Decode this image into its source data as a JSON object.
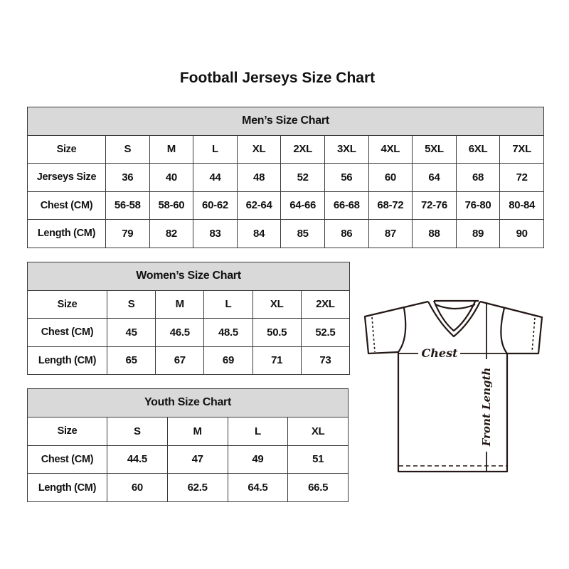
{
  "title": "Football Jerseys Size Chart",
  "men": {
    "heading": "Men’s Size Chart",
    "rows": [
      {
        "label": "Size",
        "cells": [
          "S",
          "M",
          "L",
          "XL",
          "2XL",
          "3XL",
          "4XL",
          "5XL",
          "6XL",
          "7XL"
        ]
      },
      {
        "label": "Jerseys Size",
        "cells": [
          "36",
          "40",
          "44",
          "48",
          "52",
          "56",
          "60",
          "64",
          "68",
          "72"
        ]
      },
      {
        "label": "Chest (CM)",
        "cells": [
          "56-58",
          "58-60",
          "60-62",
          "62-64",
          "64-66",
          "66-68",
          "68-72",
          "72-76",
          "76-80",
          "80-84"
        ]
      },
      {
        "label": "Length (CM)",
        "cells": [
          "79",
          "82",
          "83",
          "84",
          "85",
          "86",
          "87",
          "88",
          "89",
          "90"
        ]
      }
    ]
  },
  "women": {
    "heading": "Women’s Size Chart",
    "rows": [
      {
        "label": "Size",
        "cells": [
          "S",
          "M",
          "L",
          "XL",
          "2XL"
        ]
      },
      {
        "label": "Chest (CM)",
        "cells": [
          "45",
          "46.5",
          "48.5",
          "50.5",
          "52.5"
        ]
      },
      {
        "label": "Length (CM)",
        "cells": [
          "65",
          "67",
          "69",
          "71",
          "73"
        ]
      }
    ]
  },
  "youth": {
    "heading": "Youth Size Chart",
    "rows": [
      {
        "label": "Size",
        "cells": [
          "S",
          "M",
          "L",
          "XL"
        ]
      },
      {
        "label": "Chest (CM)",
        "cells": [
          "44.5",
          "47",
          "49",
          "51"
        ]
      },
      {
        "label": "Length (CM)",
        "cells": [
          "60",
          "62.5",
          "64.5",
          "66.5"
        ]
      }
    ]
  },
  "diagram": {
    "chest_label": "Chest",
    "length_label": "Front Length"
  }
}
